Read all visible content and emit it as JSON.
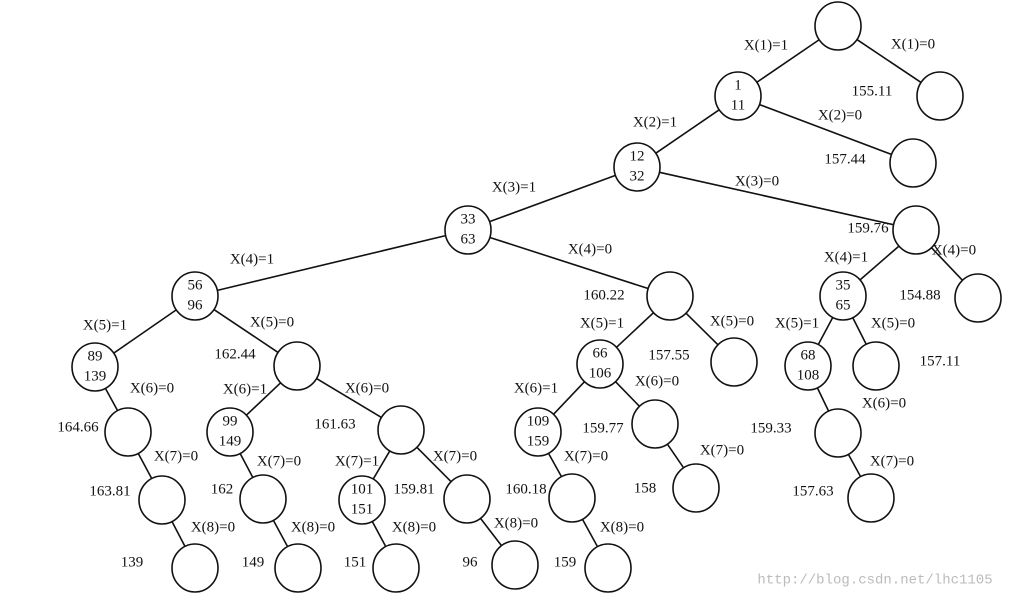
{
  "nodes": [
    {},
    {
      "branch": "X(1)=1",
      "text": [
        1,
        11
      ]
    },
    {
      "branch": "X(1)=0",
      "cost": 155.11
    },
    {
      "branch": "X(2)=1",
      "text": [
        12,
        32
      ]
    },
    {
      "branch": "X(2)=0",
      "cost": 157.44
    },
    {
      "branch": "X(3)=1",
      "text": [
        33,
        63
      ]
    },
    {
      "branch": "X(3)=0",
      "cost": 159.76
    },
    {
      "branch": "X(4)=1",
      "text": [
        56,
        96
      ]
    },
    {
      "branch": "X(4)=0",
      "cost": 160.22
    },
    {
      "branch": "X(4)=1",
      "text": [
        35,
        65
      ]
    },
    {
      "branch": "X(4)=0",
      "cost": 154.88
    },
    {
      "branch": "X(5)=1",
      "text": [
        89,
        139
      ]
    },
    {
      "branch": "X(5)=0",
      "cost": 162.44
    },
    {
      "branch": "X(5)=1",
      "text": [
        66,
        106
      ]
    },
    {
      "branch": "X(5)=0",
      "cost": 157.55
    },
    {
      "branch": "X(5)=1",
      "text": [
        68,
        108
      ]
    },
    {
      "branch": "X(5)=0",
      "cost": 157.11
    },
    {
      "branch": "X(6)=0",
      "cost": 164.66
    },
    {
      "branch": "X(6)=1",
      "text": [
        99,
        149
      ]
    },
    {
      "branch": "X(6)=0",
      "cost": 161.63
    },
    {
      "branch": "X(6)=1",
      "text": [
        109,
        159
      ]
    },
    {
      "branch": "X(6)=0",
      "cost": 159.77
    },
    {
      "branch": "X(6)=0",
      "cost": 159.33
    },
    {
      "branch": "X(7)=0",
      "cost": 163.81
    },
    {
      "branch": "X(7)=0",
      "cost": 162
    },
    {
      "branch": "X(7)=1",
      "text": [
        101,
        151
      ]
    },
    {
      "branch": "X(7)=0",
      "cost": 159.81
    },
    {
      "branch": "X(7)=0",
      "cost": 160.18
    },
    {
      "branch": "X(7)=0",
      "cost": 158
    },
    {
      "branch": "X(7)=0",
      "cost": 157.63
    },
    {
      "branch": "X(8)=0",
      "cost": 139
    },
    {
      "branch": "X(8)=0",
      "cost": 149
    },
    {
      "branch": "X(8)=0",
      "cost": 151
    },
    {
      "branch": "X(8)=0",
      "cost": 96
    },
    {
      "branch": "X(8)=0",
      "cost": 159
    }
  ],
  "watermark": "http://blog.csdn.net/lhc1105"
}
